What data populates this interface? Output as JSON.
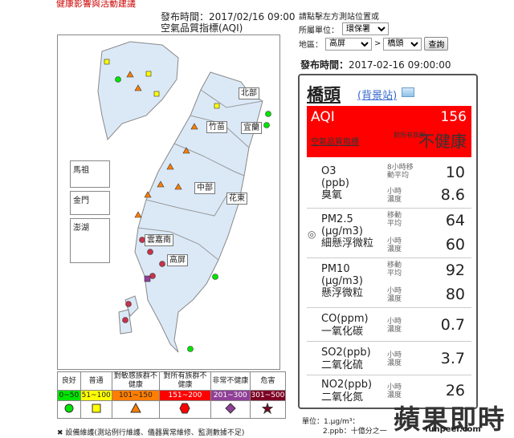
{
  "header": {
    "top_link": "健康影響與活動建議",
    "pub_time": "發布時間：2017/02/16 09:00",
    "aqi_label": "空氣品質指標(AQI)"
  },
  "controls": {
    "hint": "請點擊左方測站位置或",
    "unit_label": "所屬單位：",
    "unit_value": "環保署",
    "region_label": "地區：",
    "region_value": "高屏",
    "station_value": "橋頭",
    "query_label": "查詢",
    "pub_time2_label": "發布時間：",
    "pub_time2_value": "2017-02-16 09:00:00"
  },
  "map": {
    "insets": [
      "馬祖",
      "金門",
      "澎湖"
    ],
    "regions": [
      "北部",
      "竹苗",
      "宜蘭",
      "中部",
      "花東",
      "雲嘉南",
      "高屏"
    ]
  },
  "legend": {
    "headers": [
      "良好",
      "普通",
      "對敏感族群不健康",
      "對所有族群不健康",
      "非常不健康",
      "危害"
    ],
    "ranges": [
      "0~50",
      "51~100",
      "101~150",
      "151~200",
      "201~300",
      "301~500"
    ],
    "colors": [
      "#00e400",
      "#ffff00",
      "#ff7e00",
      "#ff0000",
      "#8f3f97",
      "#7e0023"
    ],
    "note": "設備維護(測站例行維護、儀器異常維修、監測數據不足)"
  },
  "station": {
    "name": "橋頭",
    "type_link": "(背景站)",
    "aqi_label": "AQI",
    "aqi_value": "156",
    "aqi_index_link": "空氣品質指標",
    "aqi_sub": "對所有族群",
    "aqi_status": "不健康",
    "pollutants": [
      {
        "name1": "O3",
        "name2": "(ppb)",
        "name3": "臭氧",
        "rows": [
          {
            "sub": "8小時移動平均",
            "value": "10"
          },
          {
            "sub": "小時濃度",
            "value": "8.6"
          }
        ]
      },
      {
        "name1": "PM2.5",
        "name2": "(μg/m3)",
        "name3": "細懸浮微粒",
        "rows": [
          {
            "sub": "移動平均",
            "value": "64"
          },
          {
            "sub": "小時濃度",
            "value": "60"
          }
        ]
      },
      {
        "name1": "PM10",
        "name2": "(μg/m3)",
        "name3": "懸浮微粒",
        "rows": [
          {
            "sub": "移動平均",
            "value": "92"
          },
          {
            "sub": "小時濃度",
            "value": "80"
          }
        ]
      },
      {
        "name1": "CO(ppm)",
        "name2": "",
        "name3": "一氧化碳",
        "rows": [
          {
            "sub": "小時濃度",
            "value": "0.7"
          }
        ]
      },
      {
        "name1": "SO2(ppb)",
        "name2": "",
        "name3": "二氧化硫",
        "rows": [
          {
            "sub": "小時濃度",
            "value": "3.7"
          }
        ]
      },
      {
        "name1": "NO2(ppb)",
        "name2": "",
        "name3": "二氧化氮",
        "rows": [
          {
            "sub": "小時濃度",
            "value": "26"
          }
        ]
      }
    ]
  },
  "footnote": {
    "line1": "單位：1.μg/m³：",
    "line2": "2.ppb：十億分之一"
  },
  "watermark": {
    "main": "蘋果即時",
    "site": "funpeer.com"
  }
}
